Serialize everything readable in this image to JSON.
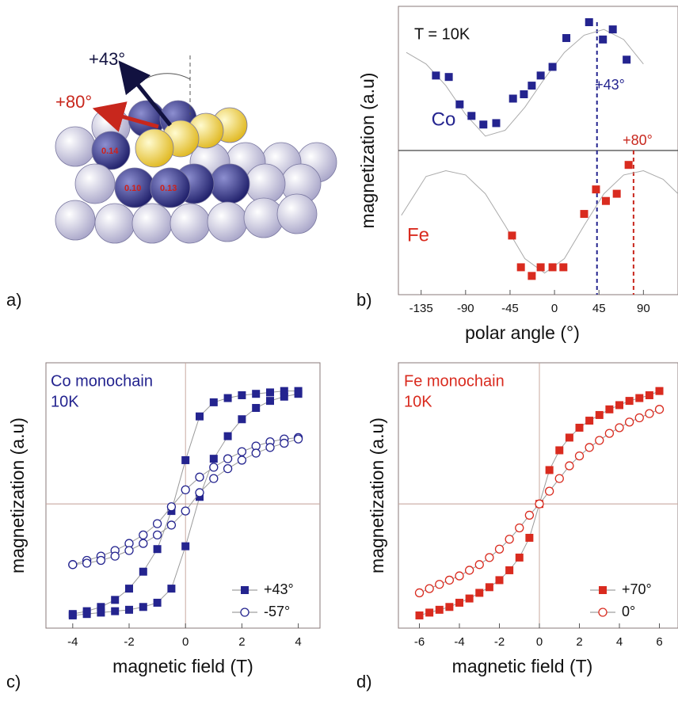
{
  "illustration": {
    "label": "a)",
    "arrows": [
      "+43°",
      "+80°"
    ],
    "site_values": [
      "0.14",
      "0.10",
      "0.13"
    ]
  },
  "chart_data": [
    {
      "type": "scatter",
      "panel_label": "b)",
      "annotation": "T = 10K",
      "xlabel": "polar angle (°)",
      "ylabel": "magnetization (a.u)",
      "xlim": [
        -158,
        125
      ],
      "ylim": [
        -1,
        1
      ],
      "xticks": [
        -135,
        -90,
        -45,
        0,
        45,
        90
      ],
      "zero_lines": [
        "y"
      ],
      "legend": "inline",
      "vlines": [
        {
          "value": 43,
          "label": "+43°",
          "color": "#24248f"
        },
        {
          "value": 80,
          "label": "+80°",
          "color": "#c8271d"
        }
      ],
      "series": [
        {
          "color": "#aaaaaa",
          "marker": "none",
          "line": true,
          "x": [
            -150,
            -130,
            -110,
            -90,
            -70,
            -50,
            -30,
            -10,
            10,
            30,
            50,
            70,
            90
          ],
          "values": [
            0.68,
            0.6,
            0.45,
            0.25,
            0.1,
            0.14,
            0.3,
            0.5,
            0.68,
            0.8,
            0.84,
            0.77,
            0.6
          ]
        },
        {
          "color": "#aaaaaa",
          "marker": "none",
          "line": true,
          "x": [
            -155,
            -130,
            -110,
            -90,
            -70,
            -50,
            -30,
            -10,
            10,
            30,
            50,
            70,
            90,
            110,
            125
          ],
          "values": [
            -0.45,
            -0.18,
            -0.14,
            -0.17,
            -0.3,
            -0.52,
            -0.75,
            -0.85,
            -0.75,
            -0.52,
            -0.3,
            -0.17,
            -0.14,
            -0.2,
            -0.3
          ]
        },
        {
          "name": "Co",
          "color": "#24248f",
          "marker": "square",
          "line": false,
          "x": [
            -120,
            -107,
            -96,
            -84,
            -72,
            -59,
            -42,
            -31,
            -23,
            -14,
            -2,
            12,
            35,
            49,
            59,
            73
          ],
          "values": [
            0.52,
            0.51,
            0.32,
            0.24,
            0.18,
            0.19,
            0.36,
            0.39,
            0.45,
            0.52,
            0.58,
            0.78,
            0.89,
            0.77,
            0.84,
            0.63
          ]
        },
        {
          "name": "Fe",
          "color": "#d92b1f",
          "marker": "square",
          "line": false,
          "x": [
            -43,
            -34,
            -23,
            -14,
            -2,
            9,
            30,
            42,
            52,
            63,
            75
          ],
          "values": [
            -0.59,
            -0.81,
            -0.87,
            -0.81,
            -0.81,
            -0.81,
            -0.44,
            -0.27,
            -0.35,
            -0.3,
            -0.1
          ]
        }
      ]
    },
    {
      "type": "scatter",
      "panel_label": "c)",
      "title": "Co monochain",
      "subtitle": "10K",
      "xlabel": "magnetic field (T)",
      "ylabel": "magnetization (a.u)",
      "xlim": [
        -4.95,
        4.77
      ],
      "ylim": [
        -0.88,
        1
      ],
      "xticks": [
        -4,
        -2,
        0,
        2,
        4
      ],
      "zero_lines": [
        "x",
        "y"
      ],
      "legend": "lower right",
      "series": [
        {
          "name": "+43°",
          "color": "#24248f",
          "marker": "square",
          "line": true,
          "x": [
            4,
            3.5,
            3,
            2.5,
            2,
            1.5,
            1,
            0.5,
            0,
            -0.5,
            -1,
            -1.5,
            -2,
            -2.5,
            -3,
            -3.5,
            -4,
            -4,
            -3.5,
            -3,
            -2.5,
            -2,
            -1.5,
            -1,
            -0.5,
            0,
            0.5,
            1,
            1.5,
            2,
            2.5,
            3,
            3.5,
            4
          ],
          "values": [
            0.8,
            0.8,
            0.79,
            0.78,
            0.77,
            0.75,
            0.72,
            0.62,
            0.31,
            -0.05,
            -0.32,
            -0.48,
            -0.6,
            -0.68,
            -0.73,
            -0.76,
            -0.78,
            -0.79,
            -0.78,
            -0.77,
            -0.76,
            -0.75,
            -0.73,
            -0.7,
            -0.6,
            -0.3,
            0.05,
            0.32,
            0.48,
            0.6,
            0.68,
            0.73,
            0.76,
            0.78
          ]
        },
        {
          "name": "-57°",
          "color": "#24248f",
          "marker": "circle-open",
          "line": true,
          "x": [
            4,
            3.5,
            3,
            2.5,
            2,
            1.5,
            1,
            0.5,
            0,
            -0.5,
            -1,
            -1.5,
            -2,
            -2.5,
            -3,
            -3.5,
            -4,
            -4,
            -3.5,
            -3,
            -2.5,
            -2,
            -1.5,
            -1,
            -0.5,
            0,
            0.5,
            1,
            1.5,
            2,
            2.5,
            3,
            3.5,
            4
          ],
          "values": [
            0.47,
            0.46,
            0.44,
            0.41,
            0.37,
            0.32,
            0.26,
            0.19,
            0.1,
            -0.02,
            -0.14,
            -0.22,
            -0.28,
            -0.33,
            -0.37,
            -0.4,
            -0.43,
            -0.43,
            -0.42,
            -0.4,
            -0.37,
            -0.33,
            -0.28,
            -0.22,
            -0.15,
            -0.05,
            0.08,
            0.18,
            0.25,
            0.31,
            0.36,
            0.4,
            0.43,
            0.46
          ]
        }
      ]
    },
    {
      "type": "scatter",
      "panel_label": "d)",
      "title": "Fe monochain",
      "subtitle": "10K",
      "xlabel": "magnetic field (T)",
      "ylabel": "magnetization (a.u)",
      "xlim": [
        -7.05,
        6.93
      ],
      "ylim": [
        -0.88,
        1
      ],
      "xticks": [
        -6,
        -4,
        -2,
        0,
        2,
        4,
        6
      ],
      "zero_lines": [
        "x",
        "y"
      ],
      "legend": "lower right",
      "series": [
        {
          "name": "+70°",
          "color": "#d92b1f",
          "marker": "square",
          "line": true,
          "x": [
            -6,
            -5.5,
            -5,
            -4.5,
            -4,
            -3.5,
            -3,
            -2.5,
            -2,
            -1.5,
            -1,
            -0.5,
            0,
            0.5,
            1,
            1.5,
            2,
            2.5,
            3,
            3.5,
            4,
            4.5,
            5,
            5.5,
            6
          ],
          "values": [
            -0.79,
            -0.77,
            -0.75,
            -0.73,
            -0.7,
            -0.67,
            -0.63,
            -0.59,
            -0.54,
            -0.47,
            -0.38,
            -0.24,
            0,
            0.24,
            0.38,
            0.47,
            0.54,
            0.59,
            0.63,
            0.67,
            0.7,
            0.73,
            0.75,
            0.77,
            0.8
          ]
        },
        {
          "name": "0°",
          "color": "#d92b1f",
          "marker": "circle-open",
          "line": true,
          "x": [
            -6,
            -5.5,
            -5,
            -4.5,
            -4,
            -3.5,
            -3,
            -2.5,
            -2,
            -1.5,
            -1,
            -0.5,
            0,
            0.5,
            1,
            1.5,
            2,
            2.5,
            3,
            3.5,
            4,
            4.5,
            5,
            5.5,
            6
          ],
          "values": [
            -0.63,
            -0.6,
            -0.57,
            -0.54,
            -0.51,
            -0.47,
            -0.43,
            -0.38,
            -0.32,
            -0.25,
            -0.17,
            -0.08,
            0,
            0.09,
            0.18,
            0.27,
            0.34,
            0.4,
            0.45,
            0.5,
            0.54,
            0.58,
            0.61,
            0.64,
            0.67
          ]
        }
      ]
    }
  ]
}
